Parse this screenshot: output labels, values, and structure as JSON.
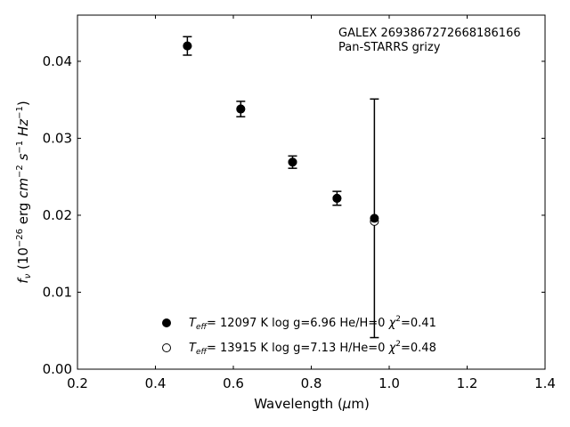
{
  "chart_data": {
    "type": "scatter",
    "xlabel": {
      "main": "Wavelength (",
      "mu": "μ",
      "unit": "m)"
    },
    "ylabel": {
      "f": "f",
      "nu": "ν",
      "pre": " (10",
      "e1": "−26",
      "mid1": " erg ",
      "cm": "cm",
      "e2": "−2",
      "mid2": " ",
      "s": "s",
      "e3": "−1",
      "mid3": " ",
      "hz": "Hz",
      "e4": "−1",
      "post": ")"
    },
    "xlim": [
      0.2,
      1.4
    ],
    "ylim": [
      0.0,
      0.046
    ],
    "xticks": [
      0.2,
      0.4,
      0.6,
      0.8,
      1.0,
      1.2,
      1.4
    ],
    "xtick_labels": [
      "0.2",
      "0.4",
      "0.6",
      "0.8",
      "1.0",
      "1.2",
      "1.4"
    ],
    "yticks": [
      0.0,
      0.01,
      0.02,
      0.03,
      0.04
    ],
    "ytick_labels": [
      "0.00",
      "0.01",
      "0.02",
      "0.03",
      "0.04"
    ],
    "grid": false,
    "annotation": [
      "GALEX 2693867272668186166",
      "Pan-STARRS grizy"
    ],
    "observed": [
      {
        "x": 0.482,
        "y": 0.042,
        "err": 0.0012
      },
      {
        "x": 0.619,
        "y": 0.0338,
        "err": 0.001
      },
      {
        "x": 0.752,
        "y": 0.0269,
        "err": 0.0008
      },
      {
        "x": 0.866,
        "y": 0.0222,
        "err": 0.0009
      },
      {
        "x": 0.962,
        "y": 0.0196,
        "err": 0.0155
      }
    ],
    "series": [
      {
        "marker": "filled",
        "legend": {
          "T": "T",
          "eff": "eff",
          "text": "= 12097 K  log g=6.96  He/H=0  ",
          "chi": "χ",
          "two": "2",
          "val": "=0.41"
        },
        "points": [
          {
            "x": 0.482,
            "y": 0.042
          },
          {
            "x": 0.619,
            "y": 0.0338
          },
          {
            "x": 0.752,
            "y": 0.0269
          },
          {
            "x": 0.866,
            "y": 0.0222
          },
          {
            "x": 0.962,
            "y": 0.0196
          }
        ]
      },
      {
        "marker": "open",
        "legend": {
          "T": "T",
          "eff": "eff",
          "text": "= 13915 K  log g=7.13  H/He=0  ",
          "chi": "χ",
          "two": "2",
          "val": "=0.48"
        },
        "points": [
          {
            "x": 0.482,
            "y": 0.042
          },
          {
            "x": 0.619,
            "y": 0.0338
          },
          {
            "x": 0.752,
            "y": 0.0269
          },
          {
            "x": 0.866,
            "y": 0.0222
          },
          {
            "x": 0.962,
            "y": 0.0192
          }
        ]
      }
    ]
  }
}
